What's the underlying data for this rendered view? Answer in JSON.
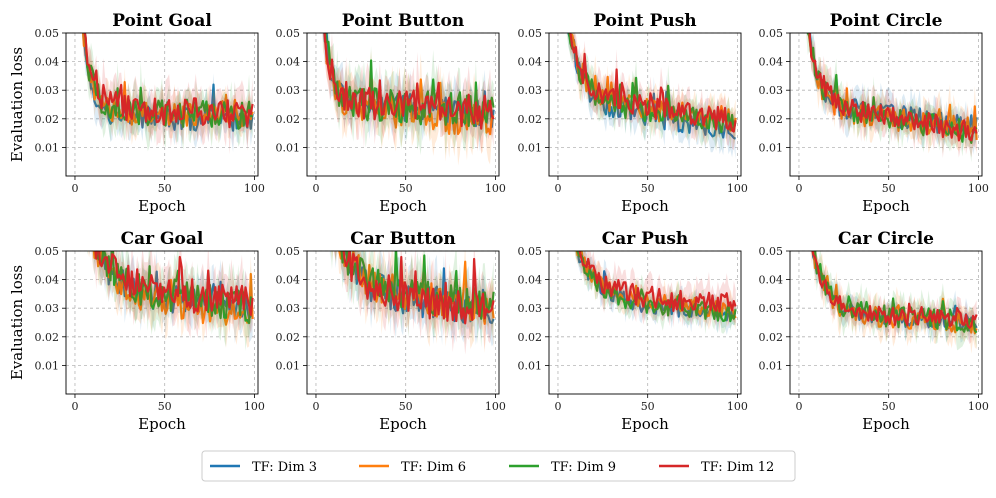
{
  "legend": {
    "location": "bottom-center",
    "entries": [
      {
        "name": "TF: Dim 3",
        "color": "#1f77b4"
      },
      {
        "name": "TF: Dim 6",
        "color": "#ff7f0e"
      },
      {
        "name": "TF: Dim 9",
        "color": "#2ca02c"
      },
      {
        "name": "TF: Dim 12",
        "color": "#d62728"
      }
    ]
  },
  "chart_data": [
    {
      "type": "line",
      "title": "Point Goal",
      "xlabel": "Epoch",
      "ylabel": "Evaluation loss",
      "xlim": [
        -5,
        102
      ],
      "ylim": [
        0.0,
        0.05
      ],
      "xticks": [
        0,
        50,
        100
      ],
      "yticks": [
        0.01,
        0.02,
        0.03,
        0.04,
        0.05
      ],
      "grid": true,
      "series": [
        {
          "name": "TF: Dim 3",
          "start": 0.08,
          "plateau": 0.021,
          "tail": 0.019,
          "decay": 5,
          "noise": 0.004
        },
        {
          "name": "TF: Dim 6",
          "start": 0.08,
          "plateau": 0.022,
          "tail": 0.021,
          "decay": 5,
          "noise": 0.004
        },
        {
          "name": "TF: Dim 9",
          "start": 0.08,
          "plateau": 0.023,
          "tail": 0.021,
          "decay": 5,
          "noise": 0.005
        },
        {
          "name": "TF: Dim 12",
          "start": 0.08,
          "plateau": 0.024,
          "tail": 0.021,
          "decay": 5,
          "noise": 0.005
        }
      ]
    },
    {
      "type": "line",
      "title": "Point Button",
      "xlabel": "Epoch",
      "ylabel": "",
      "xlim": [
        -5,
        102
      ],
      "ylim": [
        0.0,
        0.05
      ],
      "xticks": [
        0,
        50,
        100
      ],
      "yticks": [
        0.01,
        0.02,
        0.03,
        0.04,
        0.05
      ],
      "grid": true,
      "series": [
        {
          "name": "TF: Dim 3",
          "start": 0.08,
          "plateau": 0.025,
          "tail": 0.022,
          "decay": 5,
          "noise": 0.005
        },
        {
          "name": "TF: Dim 6",
          "start": 0.08,
          "plateau": 0.024,
          "tail": 0.019,
          "decay": 5,
          "noise": 0.006
        },
        {
          "name": "TF: Dim 9",
          "start": 0.08,
          "plateau": 0.025,
          "tail": 0.023,
          "decay": 5,
          "noise": 0.006
        },
        {
          "name": "TF: Dim 12",
          "start": 0.08,
          "plateau": 0.026,
          "tail": 0.022,
          "decay": 5,
          "noise": 0.006
        }
      ]
    },
    {
      "type": "line",
      "title": "Point Push",
      "xlabel": "Epoch",
      "ylabel": "",
      "xlim": [
        -5,
        102
      ],
      "ylim": [
        0.0,
        0.05
      ],
      "xticks": [
        0,
        50,
        100
      ],
      "yticks": [
        0.01,
        0.02,
        0.03,
        0.04,
        0.05
      ],
      "grid": true,
      "series": [
        {
          "name": "TF: Dim 3",
          "start": 0.08,
          "plateau": 0.025,
          "tail": 0.016,
          "decay": 7,
          "noise": 0.004
        },
        {
          "name": "TF: Dim 6",
          "start": 0.08,
          "plateau": 0.027,
          "tail": 0.019,
          "decay": 7,
          "noise": 0.004
        },
        {
          "name": "TF: Dim 9",
          "start": 0.08,
          "plateau": 0.026,
          "tail": 0.018,
          "decay": 7,
          "noise": 0.004
        },
        {
          "name": "TF: Dim 12",
          "start": 0.08,
          "plateau": 0.028,
          "tail": 0.019,
          "decay": 7,
          "noise": 0.004
        }
      ]
    },
    {
      "type": "line",
      "title": "Point Circle",
      "xlabel": "Epoch",
      "ylabel": "",
      "xlim": [
        -5,
        102
      ],
      "ylim": [
        0.0,
        0.05
      ],
      "xticks": [
        0,
        50,
        100
      ],
      "yticks": [
        0.01,
        0.02,
        0.03,
        0.04,
        0.05
      ],
      "grid": true,
      "series": [
        {
          "name": "TF: Dim 3",
          "start": 0.08,
          "plateau": 0.024,
          "tail": 0.017,
          "decay": 6,
          "noise": 0.004
        },
        {
          "name": "TF: Dim 6",
          "start": 0.08,
          "plateau": 0.023,
          "tail": 0.016,
          "decay": 6,
          "noise": 0.004
        },
        {
          "name": "TF: Dim 9",
          "start": 0.08,
          "plateau": 0.024,
          "tail": 0.015,
          "decay": 6,
          "noise": 0.004
        },
        {
          "name": "TF: Dim 12",
          "start": 0.08,
          "plateau": 0.025,
          "tail": 0.015,
          "decay": 6,
          "noise": 0.004
        }
      ]
    },
    {
      "type": "line",
      "title": "Car Goal",
      "xlabel": "Epoch",
      "ylabel": "Evaluation loss",
      "xlim": [
        -5,
        102
      ],
      "ylim": [
        0.0,
        0.05
      ],
      "xticks": [
        0,
        50,
        100
      ],
      "yticks": [
        0.01,
        0.02,
        0.03,
        0.04,
        0.05
      ],
      "grid": true,
      "series": [
        {
          "name": "TF: Dim 3",
          "start": 0.08,
          "plateau": 0.036,
          "tail": 0.03,
          "decay": 10,
          "noise": 0.005
        },
        {
          "name": "TF: Dim 6",
          "start": 0.08,
          "plateau": 0.035,
          "tail": 0.027,
          "decay": 10,
          "noise": 0.005
        },
        {
          "name": "TF: Dim 9",
          "start": 0.08,
          "plateau": 0.038,
          "tail": 0.03,
          "decay": 10,
          "noise": 0.006
        },
        {
          "name": "TF: Dim 12",
          "start": 0.08,
          "plateau": 0.038,
          "tail": 0.032,
          "decay": 10,
          "noise": 0.006
        }
      ]
    },
    {
      "type": "line",
      "title": "Car Button",
      "xlabel": "Epoch",
      "ylabel": "",
      "xlim": [
        -5,
        102
      ],
      "ylim": [
        0.0,
        0.05
      ],
      "xticks": [
        0,
        50,
        100
      ],
      "yticks": [
        0.01,
        0.02,
        0.03,
        0.04,
        0.05
      ],
      "grid": true,
      "series": [
        {
          "name": "TF: Dim 3",
          "start": 0.08,
          "plateau": 0.036,
          "tail": 0.029,
          "decay": 12,
          "noise": 0.006
        },
        {
          "name": "TF: Dim 6",
          "start": 0.08,
          "plateau": 0.037,
          "tail": 0.03,
          "decay": 12,
          "noise": 0.006
        },
        {
          "name": "TF: Dim 9",
          "start": 0.08,
          "plateau": 0.037,
          "tail": 0.031,
          "decay": 12,
          "noise": 0.006
        },
        {
          "name": "TF: Dim 12",
          "start": 0.08,
          "plateau": 0.036,
          "tail": 0.029,
          "decay": 12,
          "noise": 0.006
        }
      ]
    },
    {
      "type": "line",
      "title": "Car Push",
      "xlabel": "Epoch",
      "ylabel": "",
      "xlim": [
        -5,
        102
      ],
      "ylim": [
        0.0,
        0.05
      ],
      "xticks": [
        0,
        50,
        100
      ],
      "yticks": [
        0.01,
        0.02,
        0.03,
        0.04,
        0.05
      ],
      "grid": true,
      "series": [
        {
          "name": "TF: Dim 3",
          "start": 0.08,
          "plateau": 0.033,
          "tail": 0.028,
          "decay": 10,
          "noise": 0.003
        },
        {
          "name": "TF: Dim 6",
          "start": 0.08,
          "plateau": 0.034,
          "tail": 0.029,
          "decay": 10,
          "noise": 0.003
        },
        {
          "name": "TF: Dim 9",
          "start": 0.08,
          "plateau": 0.033,
          "tail": 0.028,
          "decay": 10,
          "noise": 0.003
        },
        {
          "name": "TF: Dim 12",
          "start": 0.08,
          "plateau": 0.035,
          "tail": 0.031,
          "decay": 10,
          "noise": 0.004
        }
      ]
    },
    {
      "type": "line",
      "title": "Car Circle",
      "xlabel": "Epoch",
      "ylabel": "",
      "xlim": [
        -5,
        102
      ],
      "ylim": [
        0.0,
        0.05
      ],
      "xticks": [
        0,
        50,
        100
      ],
      "yticks": [
        0.01,
        0.02,
        0.03,
        0.04,
        0.05
      ],
      "grid": true,
      "series": [
        {
          "name": "TF: Dim 3",
          "start": 0.08,
          "plateau": 0.028,
          "tail": 0.025,
          "decay": 8,
          "noise": 0.003
        },
        {
          "name": "TF: Dim 6",
          "start": 0.08,
          "plateau": 0.028,
          "tail": 0.025,
          "decay": 8,
          "noise": 0.004
        },
        {
          "name": "TF: Dim 9",
          "start": 0.08,
          "plateau": 0.029,
          "tail": 0.025,
          "decay": 8,
          "noise": 0.004
        },
        {
          "name": "TF: Dim 12",
          "start": 0.08,
          "plateau": 0.028,
          "tail": 0.026,
          "decay": 8,
          "noise": 0.003
        }
      ]
    }
  ]
}
